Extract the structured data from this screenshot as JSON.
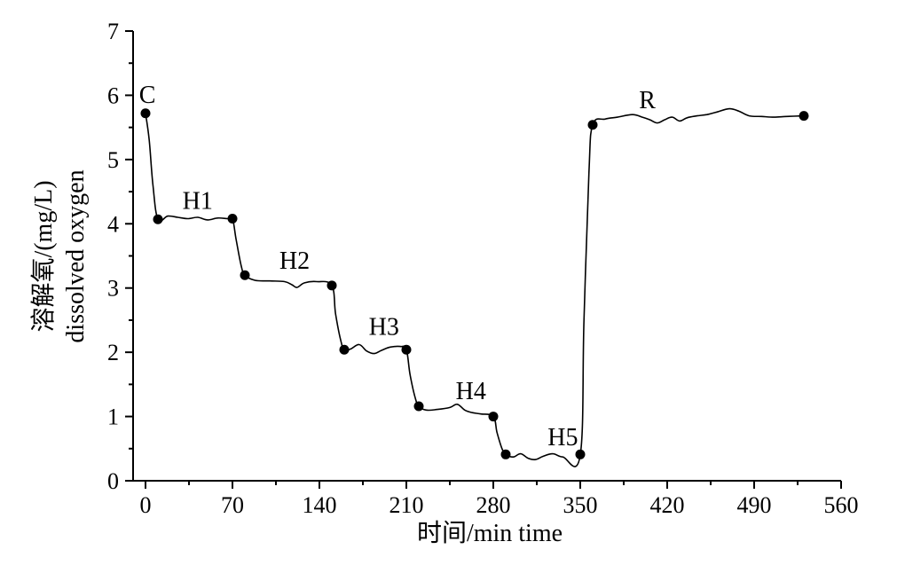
{
  "chart_data": {
    "type": "line",
    "title": "",
    "xlabel": "时间/min time",
    "ylabel_line1": "溶解氧/(mg/L)",
    "ylabel_line2": "dissolved oxygen",
    "xlim": [
      -10,
      560
    ],
    "ylim": [
      0,
      7
    ],
    "xticks": [
      0,
      70,
      140,
      210,
      280,
      350,
      420,
      490,
      560
    ],
    "yticks": [
      0,
      1,
      2,
      3,
      4,
      5,
      6,
      7
    ],
    "xtick_labels": [
      "0",
      "70",
      "140",
      "210",
      "280",
      "350",
      "420",
      "490",
      "560"
    ],
    "ytick_labels": [
      "0",
      "1",
      "2",
      "3",
      "4",
      "5",
      "6",
      "7"
    ],
    "grid": false,
    "legend": "none",
    "series": [
      {
        "markers": [
          {
            "x": 0,
            "y": 5.72
          },
          {
            "x": 10,
            "y": 4.07
          },
          {
            "x": 70,
            "y": 4.08
          },
          {
            "x": 80,
            "y": 3.2
          },
          {
            "x": 150,
            "y": 3.04
          },
          {
            "x": 160,
            "y": 2.04
          },
          {
            "x": 210,
            "y": 2.04
          },
          {
            "x": 220,
            "y": 1.16
          },
          {
            "x": 280,
            "y": 1.0
          },
          {
            "x": 290,
            "y": 0.41
          },
          {
            "x": 350,
            "y": 0.41
          },
          {
            "x": 360,
            "y": 5.54
          },
          {
            "x": 530,
            "y": 5.68
          }
        ],
        "line": [
          [
            0,
            5.72
          ],
          [
            3,
            5.3
          ],
          [
            6,
            4.6
          ],
          [
            10,
            4.07
          ],
          [
            18,
            4.12
          ],
          [
            26,
            4.1
          ],
          [
            34,
            4.08
          ],
          [
            42,
            4.1
          ],
          [
            50,
            4.06
          ],
          [
            58,
            4.09
          ],
          [
            66,
            4.08
          ],
          [
            70,
            4.08
          ],
          [
            73,
            3.75
          ],
          [
            77,
            3.35
          ],
          [
            80,
            3.2
          ],
          [
            88,
            3.12
          ],
          [
            100,
            3.11
          ],
          [
            112,
            3.1
          ],
          [
            118,
            3.05
          ],
          [
            122,
            3.01
          ],
          [
            128,
            3.08
          ],
          [
            138,
            3.1
          ],
          [
            150,
            3.04
          ],
          [
            153,
            2.6
          ],
          [
            157,
            2.2
          ],
          [
            160,
            2.04
          ],
          [
            165,
            2.05
          ],
          [
            172,
            2.12
          ],
          [
            178,
            2.02
          ],
          [
            184,
            1.98
          ],
          [
            190,
            2.03
          ],
          [
            197,
            2.08
          ],
          [
            205,
            2.09
          ],
          [
            210,
            2.04
          ],
          [
            213,
            1.65
          ],
          [
            217,
            1.3
          ],
          [
            220,
            1.16
          ],
          [
            226,
            1.1
          ],
          [
            235,
            1.11
          ],
          [
            245,
            1.14
          ],
          [
            251,
            1.19
          ],
          [
            257,
            1.1
          ],
          [
            263,
            1.06
          ],
          [
            270,
            1.04
          ],
          [
            280,
            1.0
          ],
          [
            283,
            0.75
          ],
          [
            287,
            0.5
          ],
          [
            290,
            0.41
          ],
          [
            296,
            0.37
          ],
          [
            302,
            0.42
          ],
          [
            308,
            0.35
          ],
          [
            314,
            0.33
          ],
          [
            320,
            0.38
          ],
          [
            328,
            0.42
          ],
          [
            336,
            0.37
          ],
          [
            350,
            0.4
          ],
          [
            353,
            2.5
          ],
          [
            357,
            4.8
          ],
          [
            360,
            5.54
          ],
          [
            370,
            5.63
          ],
          [
            380,
            5.66
          ],
          [
            392,
            5.7
          ],
          [
            400,
            5.66
          ],
          [
            406,
            5.62
          ],
          [
            412,
            5.57
          ],
          [
            418,
            5.62
          ],
          [
            424,
            5.66
          ],
          [
            430,
            5.6
          ],
          [
            436,
            5.65
          ],
          [
            444,
            5.68
          ],
          [
            452,
            5.7
          ],
          [
            460,
            5.74
          ],
          [
            470,
            5.79
          ],
          [
            478,
            5.75
          ],
          [
            486,
            5.68
          ],
          [
            496,
            5.67
          ],
          [
            506,
            5.66
          ],
          [
            516,
            5.67
          ],
          [
            530,
            5.68
          ]
        ]
      }
    ],
    "annotations": [
      {
        "text": "C",
        "x": 1.5,
        "y": 5.88
      },
      {
        "text": "H1",
        "x": 42,
        "y": 4.23
      },
      {
        "text": "H2",
        "x": 120,
        "y": 3.3
      },
      {
        "text": "H3",
        "x": 192,
        "y": 2.27
      },
      {
        "text": "H4",
        "x": 262,
        "y": 1.27
      },
      {
        "text": "H5",
        "x": 336,
        "y": 0.55
      },
      {
        "text": "R",
        "x": 404,
        "y": 5.8
      }
    ]
  }
}
